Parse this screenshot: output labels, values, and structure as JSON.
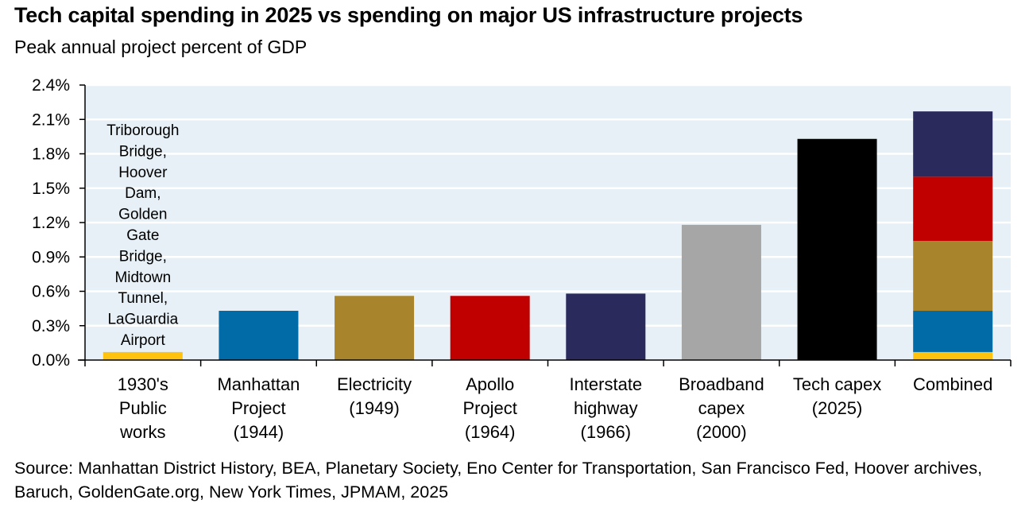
{
  "chart_data": {
    "type": "bar",
    "title": "Tech capital spending in 2025 vs spending on major US infrastructure projects",
    "subtitle": "Peak annual project percent of GDP",
    "ylabel": "",
    "xlabel": "",
    "ylim": [
      0,
      2.4
    ],
    "yticks": [
      "0.0%",
      "0.3%",
      "0.6%",
      "0.9%",
      "1.2%",
      "1.5%",
      "1.8%",
      "2.1%",
      "2.4%"
    ],
    "ytick_values": [
      0,
      0.3,
      0.6,
      0.9,
      1.2,
      1.5,
      1.8,
      2.1,
      2.4
    ],
    "grid": true,
    "categories": [
      [
        "1930's",
        "Public",
        "works"
      ],
      [
        "Manhattan",
        "Project",
        "(1944)"
      ],
      [
        "Electricity",
        "(1949)"
      ],
      [
        "Apollo",
        "Project",
        "(1964)"
      ],
      [
        "Interstate",
        "highway",
        "(1966)"
      ],
      [
        "Broadband",
        "capex",
        "(2000)"
      ],
      [
        "Tech capex",
        "(2025)"
      ],
      [
        "Combined"
      ]
    ],
    "values": [
      0.07,
      0.43,
      0.56,
      0.56,
      0.58,
      1.18,
      1.93,
      2.17
    ],
    "colors": [
      "#ffc20e",
      "#006ba6",
      "#a8842c",
      "#c00000",
      "#2b2a5c",
      "#a6a6a6",
      "#000000"
    ],
    "stacked_combined": {
      "segments": [
        {
          "value": 0.07,
          "color": "#ffc20e"
        },
        {
          "value": 0.43,
          "color": "#006ba6"
        },
        {
          "value": 1.04,
          "color": "#a8842c"
        },
        {
          "value": 1.6,
          "color": "#c00000"
        },
        {
          "value": 2.17,
          "color": "#2b2a5c"
        }
      ]
    },
    "annotation": [
      "Triborough",
      "Bridge,",
      "Hoover",
      "Dam,",
      "Golden",
      "Gate",
      "Bridge,",
      "Midtown",
      "Tunnel,",
      "LaGuardia",
      "Airport"
    ]
  },
  "source": "Source: Manhattan District History, BEA, Planetary Society, Eno Center for Transportation, San Francisco Fed, Hoover archives, Baruch, GoldenGate.org, New York Times, JPMAM, 2025",
  "colors": {
    "plot_background": "#e6f0f6",
    "gridline": "#ffffff"
  }
}
